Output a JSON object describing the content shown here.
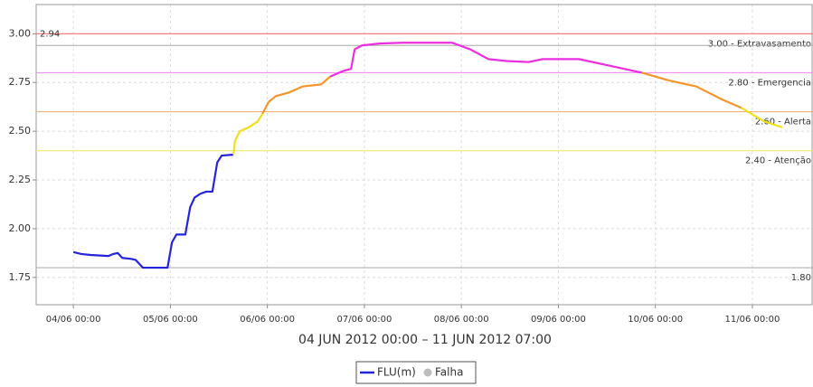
{
  "chart_data": {
    "type": "line",
    "xlabel": "04 JUN 2012 00:00 – 11 JUN 2012 07:00",
    "xlim": [
      -9.2,
      183
    ],
    "xticks": [
      {
        "value": 0,
        "label": "04/06 00:00"
      },
      {
        "value": 24,
        "label": "05/06 00:00"
      },
      {
        "value": 48,
        "label": "06/06 00:00"
      },
      {
        "value": 72,
        "label": "07/06 00:00"
      },
      {
        "value": 96,
        "label": "08/06 00:00"
      },
      {
        "value": 120,
        "label": "09/06 00:00"
      },
      {
        "value": 144,
        "label": "10/06 00:00"
      },
      {
        "value": 168,
        "label": "11/06 00:00"
      }
    ],
    "ylim": [
      1.61,
      3.15
    ],
    "yticks": [
      1.75,
      {
        "value": 2.0,
        "label": "2.00"
      },
      2.25,
      {
        "value": 2.5,
        "label": "2.50"
      },
      2.75,
      {
        "value": 3.0,
        "label": "3.00"
      }
    ],
    "grid": true,
    "series": [
      {
        "name": "FLU(m)",
        "color": "#2424d8",
        "x": [
          0,
          2.0,
          4.3,
          8.7,
          9.8,
          11.0,
          12.1,
          14.3,
          15.4,
          17.2,
          19.9,
          22.8,
          23.3,
          24.4,
          25.5,
          27.7,
          28.9,
          30.0,
          31.5,
          32.9,
          34.4,
          35.6,
          36.7,
          39.6,
          40.0,
          41.2,
          43.4,
          45.6,
          46.8,
          48.3,
          50.1,
          53.5,
          56.8,
          61.3,
          63.5,
          66.9,
          68.7,
          69.6,
          71.4,
          75.8,
          81.4,
          93.7,
          98.2,
          102.7,
          107.2,
          112.7,
          116.1,
          125.1,
          134.0,
          140.7,
          147.4,
          154.1,
          160.8,
          165.3,
          170.9,
          175.4
        ],
        "values": [
          1.88,
          1.87,
          1.865,
          1.86,
          1.87,
          1.875,
          1.85,
          1.845,
          1.84,
          1.8,
          1.8,
          1.8,
          1.8,
          1.93,
          1.97,
          1.97,
          2.11,
          2.16,
          2.18,
          2.19,
          2.19,
          2.34,
          2.375,
          2.38,
          2.45,
          2.5,
          2.52,
          2.55,
          2.59,
          2.65,
          2.68,
          2.7,
          2.73,
          2.74,
          2.78,
          2.81,
          2.82,
          2.92,
          2.94,
          2.95,
          2.954,
          2.954,
          2.92,
          2.87,
          2.86,
          2.855,
          2.87,
          2.87,
          2.83,
          2.8,
          2.76,
          2.73,
          2.66,
          2.62,
          2.55,
          2.52
        ]
      }
    ],
    "color_bands": [
      {
        "from": 1.61,
        "to": 2.4,
        "color": "#2424d8"
      },
      {
        "from": 2.4,
        "to": 2.6,
        "color": "#f2e01c"
      },
      {
        "from": 2.6,
        "to": 2.8,
        "color": "#f4952a"
      },
      {
        "from": 2.8,
        "to": 3.15,
        "color": "#ea2ee0"
      }
    ],
    "thresholds": [
      {
        "value": 3.0,
        "label": "3.00 - Extravasamento",
        "color": "#f08080"
      },
      {
        "value": 2.8,
        "label": "2.80 - Emergencia",
        "color": "#f590f0"
      },
      {
        "value": 2.6,
        "label": "2.60 - Alerta",
        "color": "#f4b07a"
      },
      {
        "value": 2.4,
        "label": "2.40 - Atenção",
        "color": "#f2e86a"
      },
      {
        "value": 1.8,
        "label": "1.80",
        "color": "#b0b0b0"
      }
    ],
    "max_marker": {
      "value": 2.94,
      "label": "2.94",
      "color": "#a8a8a8"
    },
    "legend_extra": {
      "name": "Falha",
      "color": "#bdbdbd"
    }
  }
}
